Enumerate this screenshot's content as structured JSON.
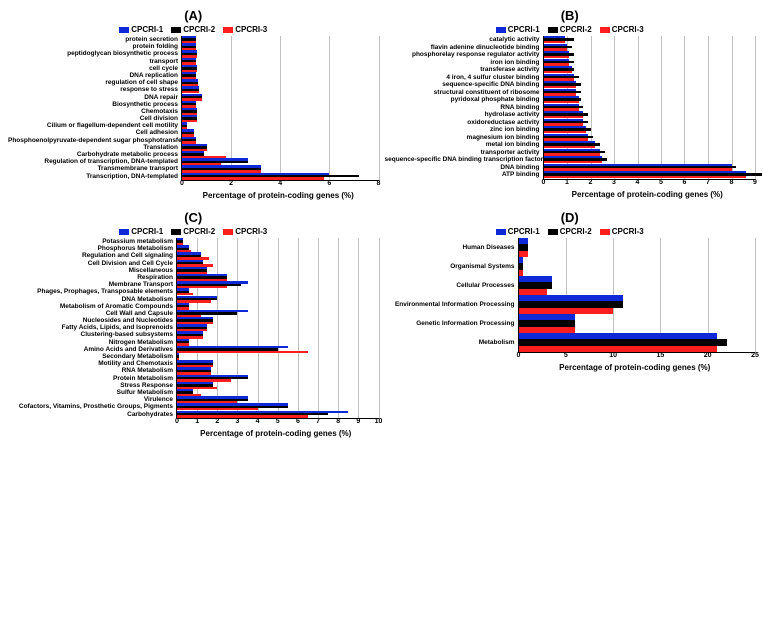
{
  "legend": {
    "series": [
      {
        "name": "CPCRI-1",
        "color": "#1029d8"
      },
      {
        "name": "CPCRI-2",
        "color": "#000000"
      },
      {
        "name": "CPCRI-3",
        "color": "#ff1e1e"
      }
    ]
  },
  "xlabel": "Percentage of protein-coding genes (%)",
  "panels": {
    "A": {
      "title": "(A)",
      "xmax": 8,
      "xtick_step": 2,
      "categories": [
        "protein secretion",
        "protein folding",
        "peptidoglycan biosynthetic process",
        "transport",
        "cell cycle",
        "DNA replication",
        "regulation of cell shape",
        "response to stress",
        "DNA repair",
        "Biosynthetic process",
        "Chemotaxis",
        "Cell division",
        "Cilium or flagellum-dependent cell motility",
        "Cell adhesion",
        "Phosphoenolpyruvate-dependent sugar phosphotransferase",
        "Translation",
        "Carbohydrate metabolic process",
        "Regulation of transcription, DNA-templated",
        "Transmembrane transport",
        "Transcription, DNA-templated"
      ],
      "values": {
        "CPCRI-1": [
          0.55,
          0.55,
          0.6,
          0.55,
          0.6,
          0.55,
          0.65,
          0.7,
          0.8,
          0.55,
          0.6,
          0.6,
          0.2,
          0.5,
          0.55,
          1.0,
          0.9,
          2.7,
          3.2,
          6.0
        ],
        "CPCRI-2": [
          0.55,
          0.55,
          0.6,
          0.55,
          0.6,
          0.55,
          0.65,
          0.7,
          0.8,
          0.55,
          0.6,
          0.6,
          0.2,
          0.5,
          0.55,
          1.0,
          0.9,
          2.7,
          3.2,
          7.2
        ],
        "CPCRI-3": [
          0.55,
          0.55,
          0.6,
          0.55,
          0.6,
          0.55,
          0.65,
          0.7,
          0.8,
          0.55,
          0.6,
          0.6,
          0.2,
          0.5,
          0.55,
          1.0,
          1.8,
          1.6,
          3.2,
          5.8
        ]
      }
    },
    "B": {
      "title": "(B)",
      "xmax": 9,
      "xtick_step": 1,
      "categories": [
        "catalytic activity",
        "flavin adenine dinucleotide binding",
        "phosphorelay response regulator activity",
        "iron ion binding",
        "transferase activity",
        "4 iron, 4 sulfur cluster binding",
        "sequence-specific DNA binding",
        "structural constituent of ribosome",
        "pyridoxal phosphate binding",
        "RNA binding",
        "hydrolase activity",
        "oxidoreductase activity",
        "zinc ion binding",
        "magnesium ion binding",
        "metal ion binding",
        "transporter activity",
        "sequence-specific DNA binding transcription factor",
        "DNA binding",
        "ATP binding"
      ],
      "values": {
        "CPCRI-1": [
          0.9,
          1.0,
          1.1,
          1.1,
          1.2,
          1.3,
          1.4,
          1.4,
          1.5,
          1.5,
          1.7,
          1.7,
          1.8,
          1.9,
          2.2,
          2.4,
          2.5,
          8.0,
          8.6
        ],
        "CPCRI-2": [
          1.3,
          1.2,
          1.3,
          1.3,
          1.3,
          1.5,
          1.6,
          1.6,
          1.6,
          1.7,
          1.9,
          1.9,
          2.0,
          2.1,
          2.4,
          2.6,
          2.7,
          8.2,
          9.3
        ],
        "CPCRI-3": [
          0.9,
          1.0,
          1.1,
          1.1,
          1.2,
          1.3,
          1.4,
          1.4,
          1.5,
          1.5,
          1.7,
          1.7,
          1.8,
          1.9,
          2.2,
          2.4,
          2.5,
          8.0,
          8.6
        ]
      }
    },
    "C": {
      "title": "(C)",
      "xmax": 10,
      "xtick_step": 1,
      "categories": [
        "Potassium metabolism",
        "Phosphorus Metabolism",
        "Regulation and Cell signaling",
        "Cell Division and Cell Cycle",
        "Miscellaneous",
        "Respiration",
        "Membrane Transport",
        "Phages, Prophages, Transposable elements",
        "DNA Metabolism",
        "Metabolism of Aromatic Compounds",
        "Cell Wall and Capsule",
        "Nucleosides and Nucleotides",
        "Fatty Acids, Lipids, and Isoprenoids",
        "Clustering-based subsystems",
        "Nitrogen Metabolism",
        "Amino Acids and Derivatives",
        "Secondary Metabolism",
        "Motility and Chemotaxis",
        "RNA Metabolism",
        "Protein Metabolism",
        "Stress Response",
        "Sulfur Metabolism",
        "Virulence",
        "Cofactors, Vitamins, Prosthetic Groups, Pigments",
        "Carbohydrates"
      ],
      "values": {
        "CPCRI-1": [
          0.3,
          0.6,
          1.2,
          1.3,
          1.5,
          2.5,
          3.5,
          0.6,
          2.0,
          0.6,
          3.5,
          1.8,
          1.5,
          1.3,
          0.6,
          5.5,
          0.1,
          1.8,
          1.7,
          3.5,
          1.8,
          0.8,
          3.5,
          5.5,
          8.5
        ],
        "CPCRI-2": [
          0.3,
          0.6,
          1.2,
          1.3,
          1.5,
          2.5,
          3.2,
          0.6,
          2.0,
          0.6,
          3.0,
          1.8,
          1.5,
          1.3,
          0.6,
          5.0,
          0.1,
          1.8,
          1.7,
          3.5,
          1.8,
          0.8,
          3.5,
          5.5,
          7.5
        ],
        "CPCRI-3": [
          0.3,
          0.7,
          1.6,
          1.8,
          1.5,
          2.5,
          2.5,
          0.8,
          1.7,
          0.6,
          1.2,
          1.8,
          1.5,
          1.3,
          0.6,
          6.5,
          0.1,
          1.8,
          1.7,
          2.7,
          2.0,
          1.2,
          3.0,
          4.0,
          6.5
        ]
      }
    },
    "D": {
      "title": "(D)",
      "xmax": 25,
      "xtick_step": 5,
      "categories": [
        "Human Diseases",
        "Organismal Systems",
        "Cellular Processes",
        "Environmental Information Processing",
        "Genetic Information Processing",
        "Metabolism"
      ],
      "values": {
        "CPCRI-1": [
          1.0,
          0.5,
          3.5,
          11.0,
          6.0,
          21.0
        ],
        "CPCRI-2": [
          1.0,
          0.5,
          3.5,
          11.0,
          6.0,
          22.0
        ],
        "CPCRI-3": [
          1.0,
          0.5,
          3.0,
          10.0,
          6.0,
          21.0
        ]
      }
    }
  }
}
